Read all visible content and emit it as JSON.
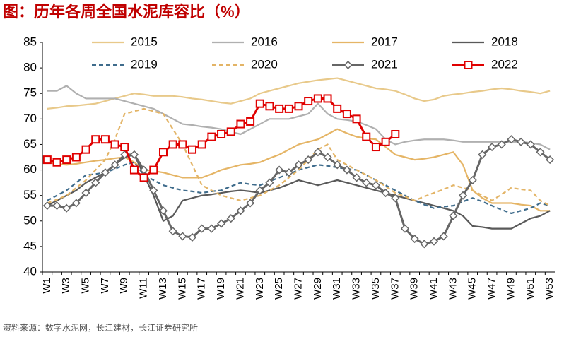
{
  "chart_data": {
    "type": "line",
    "title": "图：历年各周全国水泥库容比（%）",
    "source": "资料来源：数字水泥网，长江建材，长江证券研究所",
    "categories": [
      "W1",
      null,
      "W3",
      null,
      "W5",
      null,
      "W7",
      null,
      "W9",
      null,
      "W11",
      null,
      "W13",
      null,
      "W15",
      null,
      "W17",
      null,
      "W19",
      null,
      "W21",
      null,
      "W23",
      null,
      "W25",
      null,
      "W27",
      null,
      "W29",
      null,
      "W31",
      null,
      "W33",
      null,
      "W35",
      null,
      "W37",
      null,
      "W39",
      null,
      "W41",
      null,
      "W43",
      null,
      "W45",
      null,
      "W47",
      null,
      "W49",
      null,
      "W51",
      null,
      "W53"
    ],
    "ylim": [
      40,
      85
    ],
    "yticks": [
      40,
      45,
      50,
      55,
      60,
      65,
      70,
      75,
      80,
      85
    ],
    "series": [
      {
        "name": "2015",
        "color": "#e8c98a",
        "values": [
          72,
          72.2,
          72.5,
          72.6,
          72.8,
          73,
          73.5,
          74,
          74.5,
          75,
          74.8,
          74.5,
          74.5,
          74.5,
          74.3,
          74,
          73.8,
          73.5,
          73.2,
          73,
          73.5,
          74,
          75,
          75.5,
          76,
          76.5,
          77,
          77.3,
          77.6,
          77.8,
          78,
          77.5,
          77,
          76.5,
          76,
          75.8,
          75.5,
          74.8,
          74,
          73.5,
          73.8,
          74.5,
          74.8,
          75,
          75.3,
          75.5,
          75.8,
          76,
          75.8,
          75.5,
          75.3,
          75,
          75.5
        ]
      },
      {
        "name": "2016",
        "color": "#b0b0b0",
        "values": [
          75.5,
          75.5,
          76.5,
          75,
          74,
          74,
          74,
          74,
          73.5,
          73,
          72.5,
          72,
          71,
          70,
          69,
          68.8,
          68.5,
          68.3,
          68,
          67.5,
          67,
          68,
          69,
          70,
          70,
          70,
          70.5,
          71,
          73,
          71,
          70,
          69.8,
          69.5,
          68.8,
          68,
          66,
          65,
          65.5,
          65.8,
          66,
          66,
          66,
          65.8,
          65.5,
          65.5,
          65.5,
          65.5,
          65.5,
          65.5,
          65.5,
          65.3,
          65,
          64
        ]
      },
      {
        "name": "2017",
        "color": "#e5b566",
        "values": [
          61.5,
          61.2,
          61,
          61.2,
          61.5,
          61.8,
          62,
          62.3,
          62.5,
          61.5,
          60,
          59.8,
          59.5,
          59,
          58.5,
          58.5,
          58.5,
          59.2,
          60,
          60.5,
          61,
          61.2,
          61.5,
          62.3,
          63,
          64,
          65,
          65.5,
          66,
          67,
          68,
          67.2,
          66.5,
          66.2,
          66,
          64.5,
          63,
          62.5,
          62,
          62.2,
          62.5,
          63,
          63.5,
          61,
          56,
          54.5,
          53.5,
          53.5,
          53.5,
          53.2,
          53,
          52,
          52
        ]
      },
      {
        "name": "2018",
        "color": "#595959",
        "values": [
          53,
          54,
          55,
          56,
          57.5,
          58.5,
          59.5,
          61,
          62.5,
          63,
          59,
          55,
          50,
          51,
          54,
          54.5,
          55,
          55.2,
          55.5,
          55.8,
          56,
          55.8,
          55.5,
          56,
          56.5,
          57.2,
          58,
          57.5,
          57,
          57.5,
          58,
          57.5,
          57,
          56.5,
          56,
          55.5,
          55,
          54.5,
          54,
          53.5,
          53,
          52.5,
          52,
          51,
          49,
          48.8,
          48.5,
          48.5,
          48.5,
          49.5,
          50.5,
          51,
          52
        ]
      },
      {
        "name": "2019",
        "color": "#3f6c8c",
        "style": "dashed",
        "values": [
          54,
          55,
          56,
          57.5,
          59,
          59.2,
          59.5,
          60.2,
          61,
          61.5,
          59,
          58,
          57,
          56.5,
          56,
          55.8,
          55.5,
          55.8,
          56,
          56.8,
          57.5,
          57.2,
          57,
          57.8,
          58.5,
          59.2,
          60,
          60.5,
          61,
          60.8,
          60.5,
          60.2,
          60,
          59,
          58,
          57,
          56,
          55,
          54,
          53.2,
          52.5,
          52.8,
          53,
          53.8,
          54.5,
          53.8,
          53,
          52.2,
          51.5,
          52,
          52.5,
          53.5,
          53
        ]
      },
      {
        "name": "2020",
        "color": "#e3b466",
        "style": "dashed",
        "values": [
          53.5,
          54.2,
          55,
          56.5,
          58,
          60,
          62,
          66,
          71,
          71.5,
          72,
          71.5,
          71,
          68,
          65,
          61,
          57,
          56,
          55,
          54.5,
          54,
          54.5,
          55,
          56,
          57,
          58.5,
          60,
          62,
          64,
          65,
          62,
          61,
          60,
          59,
          58,
          56.8,
          55.5,
          54.8,
          54,
          54.8,
          55.5,
          56.2,
          57,
          56.5,
          56,
          55,
          54,
          55.2,
          56.5,
          56.2,
          56,
          54,
          53
        ]
      },
      {
        "name": "2021",
        "color": "#666666",
        "marker": "diamond",
        "values": [
          53,
          53,
          52.5,
          53.5,
          55.5,
          57.5,
          59.5,
          61,
          63,
          63,
          60,
          56,
          52,
          48,
          47,
          46.8,
          48.5,
          48.5,
          49.5,
          50.5,
          52,
          53.5,
          56,
          57.5,
          60,
          59.5,
          61,
          62,
          63.5,
          62.5,
          61,
          60,
          58.5,
          57.5,
          57,
          55.5,
          54.5,
          48.5,
          46.5,
          45.5,
          46,
          47,
          51,
          55,
          58,
          63,
          64.5,
          65,
          66,
          65.5,
          65,
          63.5,
          62
        ]
      },
      {
        "name": "2022",
        "color": "#e00000",
        "marker": "square",
        "values": [
          62,
          61.5,
          62,
          62.5,
          64,
          66,
          66,
          65,
          64.5,
          60,
          58.5,
          60,
          63.5,
          65,
          65,
          64,
          65,
          66.5,
          67,
          67.5,
          69,
          69.5,
          73,
          72.5,
          72,
          72,
          72.5,
          73.5,
          74,
          74,
          72,
          71,
          70,
          66.5,
          64.5,
          65.5,
          67,
          null,
          null,
          null,
          null,
          null,
          null,
          null,
          null,
          null,
          null,
          null,
          null,
          null,
          null,
          null,
          null
        ]
      }
    ]
  }
}
